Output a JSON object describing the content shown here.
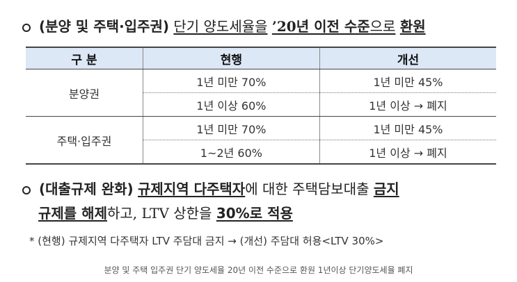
{
  "heading1": {
    "category": "(분양 및 주택·입주권)",
    "text_a": "단기 양도세율을",
    "text_b": "’20년 이전 수준",
    "text_c": "으로",
    "text_d": "환원"
  },
  "table": {
    "headers": [
      "구 분",
      "현행",
      "개선"
    ],
    "groups": [
      {
        "label": "분양권",
        "rows": [
          {
            "current": "1년 미만 70%",
            "improved": "1년 미만 45%"
          },
          {
            "current": "1년 이상 60%",
            "improved": "1년 이상 → 폐지"
          }
        ]
      },
      {
        "label": "주택·입주권",
        "rows": [
          {
            "current": "1년 미만 70%",
            "improved": "1년 미만 45%"
          },
          {
            "current": "1~2년 60%",
            "improved": "1년 이상 → 폐지"
          }
        ]
      }
    ]
  },
  "heading2": {
    "category": "(대출규제 완화)",
    "text_a": "규제지역 다주택자",
    "text_b": "에 대한 주택담보대출",
    "text_c": "금지",
    "text_d": "규제를 해제",
    "text_e": "하고, LTV 상한을",
    "text_f": "30%로 적용"
  },
  "note": "* (현행) 규제지역 다주택자 LTV 주담대 금지 → (개선) 주담대 허용<LTV 30%>",
  "caption": "분양 및 주택 입주권 단기 양도세율 20년 이전 수준으로 환원 1년이상 단기양도세율 폐지"
}
